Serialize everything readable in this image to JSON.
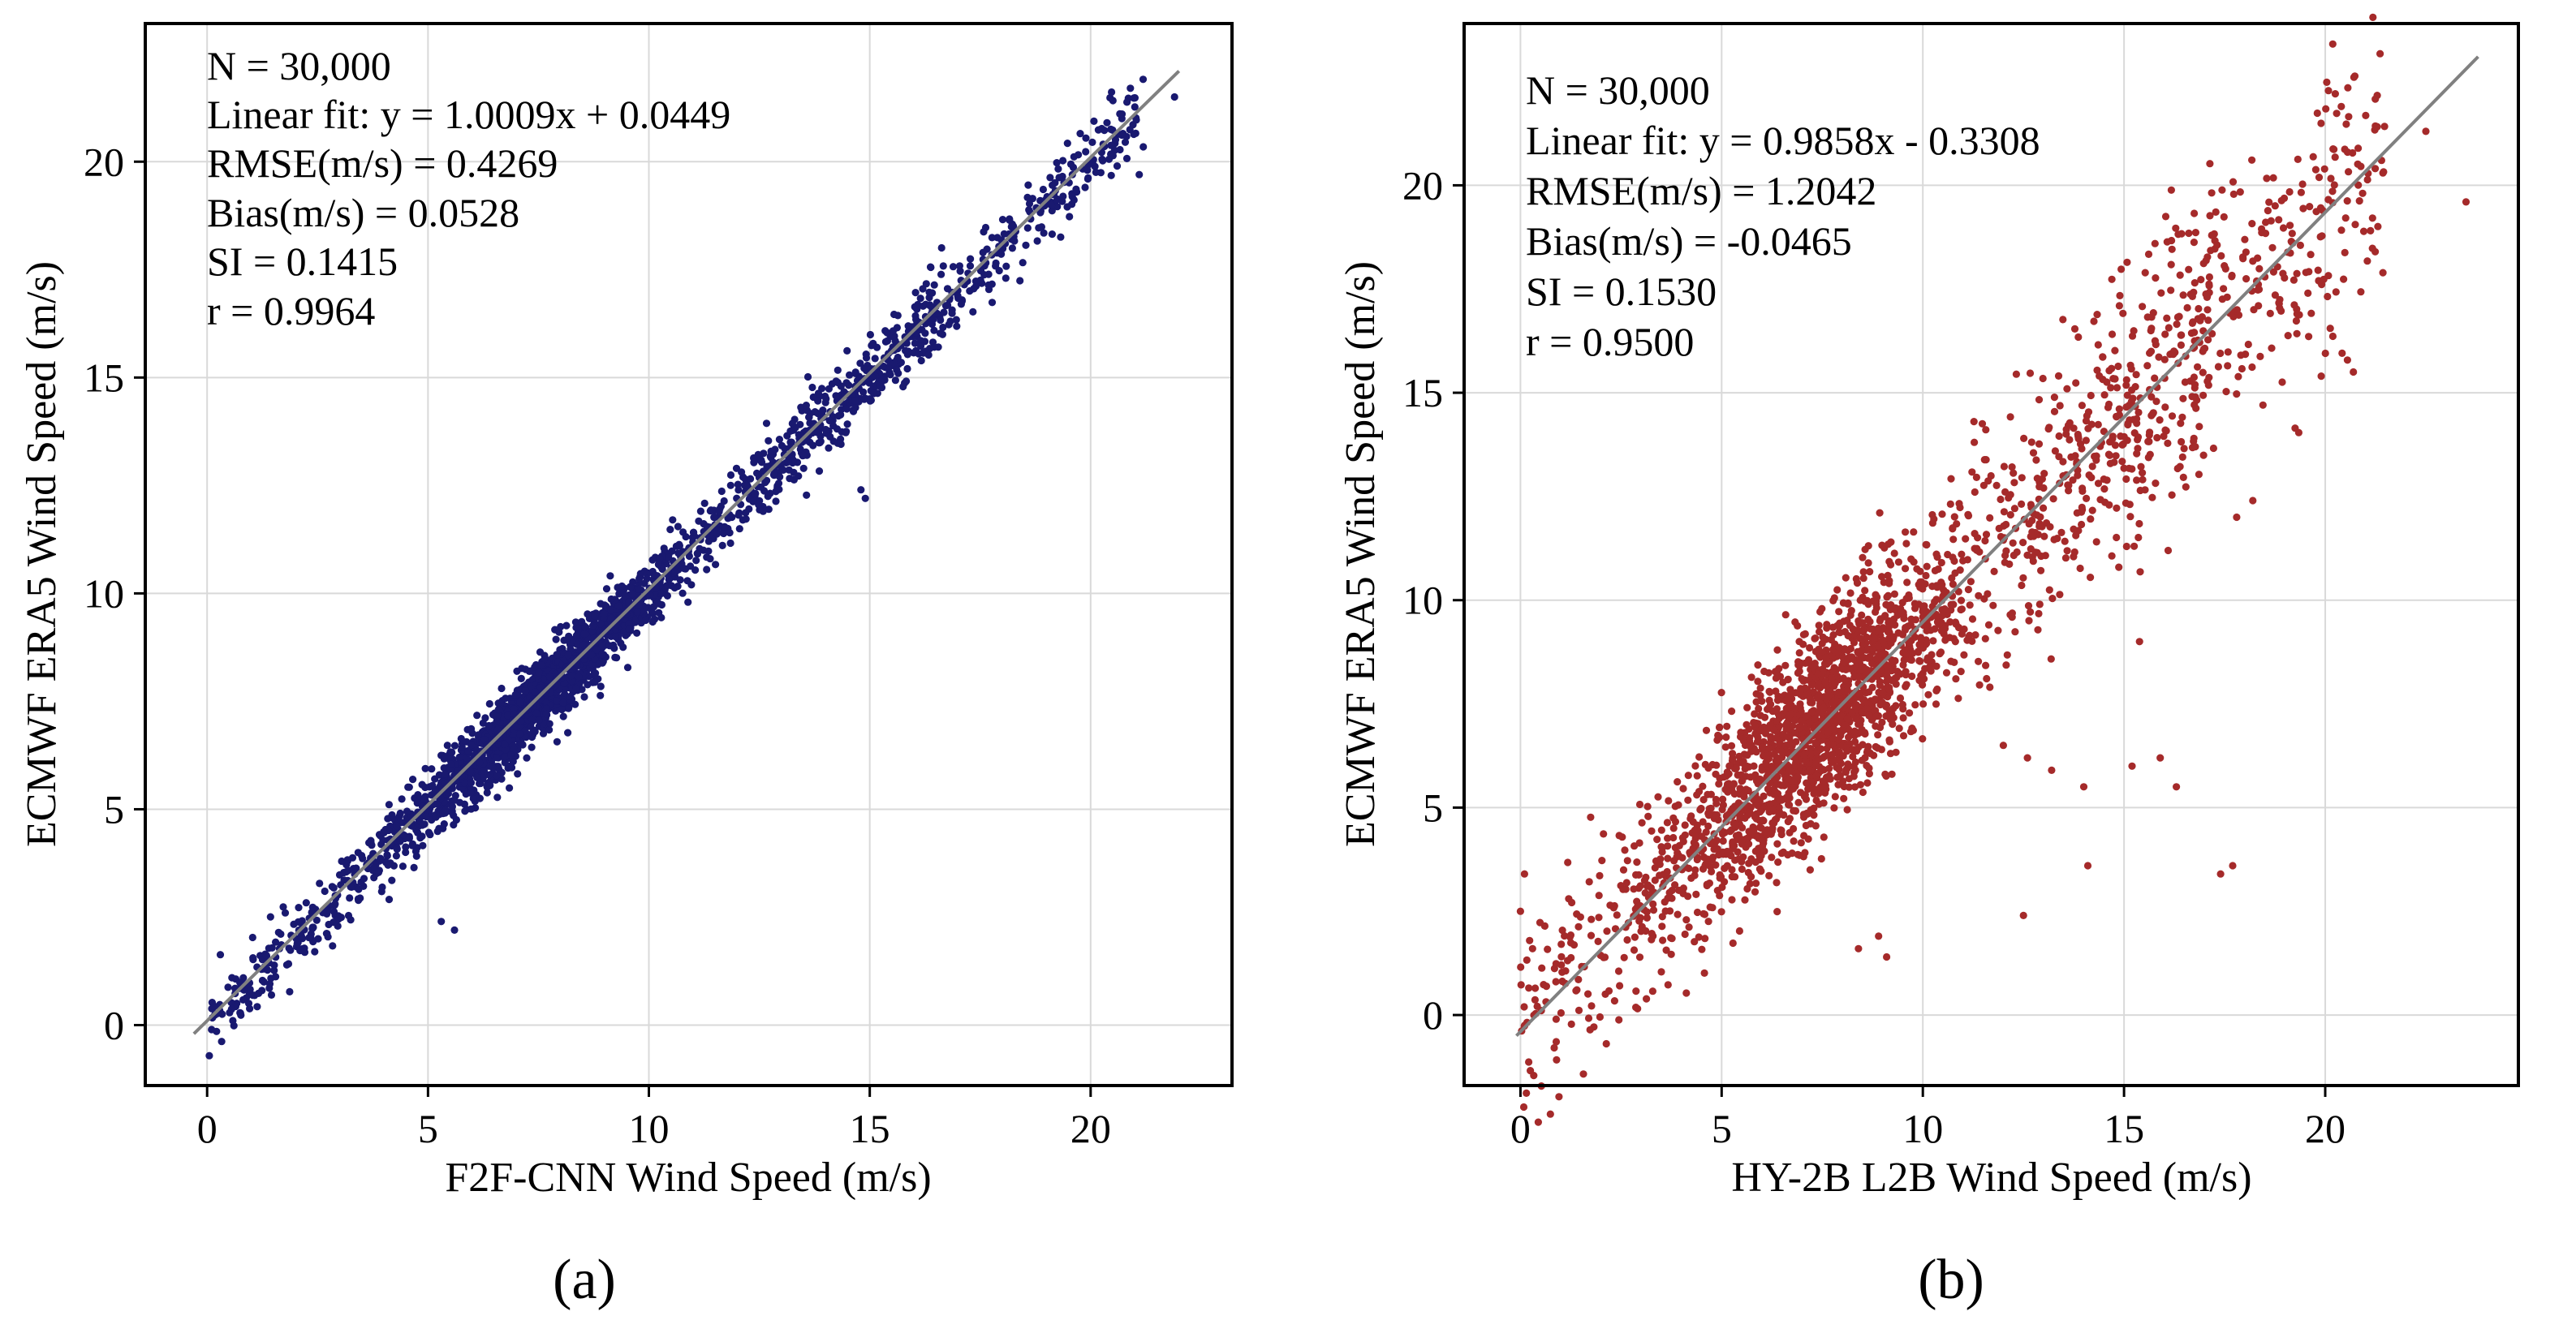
{
  "figure": {
    "panels": [
      {
        "id": "a",
        "panel_label": "(a)",
        "stats": [
          "N = 30,000",
          "Linear fit: y = 1.0009x + 0.0449",
          "RMSE(m/s) = 0.4269",
          "Bias(m/s) = 0.0528",
          "SI = 0.1415",
          "r = 0.9964"
        ]
      },
      {
        "id": "b",
        "panel_label": "(b)",
        "stats": [
          "N = 30,000",
          "Linear fit: y = 0.9858x - 0.3308",
          "RMSE(m/s) = 1.2042",
          "Bias(m/s) = -0.0465",
          "SI = 0.1530",
          "r = 0.9500"
        ]
      }
    ]
  },
  "chart_data": [
    {
      "type": "scatter",
      "title": "",
      "xlabel": "F2F-CNN Wind Speed (m/s)",
      "ylabel": "ECMWF ERA5 Wind Speed (m/s)",
      "xlim": [
        -1.4,
        23.2
      ],
      "ylim": [
        -1.4,
        23.2
      ],
      "xticks": [
        0,
        5,
        10,
        15,
        20
      ],
      "yticks": [
        0,
        5,
        10,
        15,
        20
      ],
      "grid": true,
      "point_color": "#191970",
      "line_color": "#808080",
      "n": 30000,
      "fit": {
        "slope": 1.0009,
        "intercept": 0.0449
      },
      "reference_line": {
        "x": [
          -0.3,
          22.0
        ],
        "y": [
          -0.2,
          22.1
        ]
      },
      "noise_sd": 0.42,
      "sample_range": [
        0.0,
        21.2
      ],
      "outliers": [
        {
          "x": 5.3,
          "y": 2.4
        },
        {
          "x": 5.6,
          "y": 2.2
        },
        {
          "x": 14.8,
          "y": 12.4
        },
        {
          "x": 14.9,
          "y": 12.2
        },
        {
          "x": 20.9,
          "y": 21.7
        },
        {
          "x": 21.1,
          "y": 19.7
        },
        {
          "x": 20.6,
          "y": 19.9
        },
        {
          "x": 21.9,
          "y": 21.5
        }
      ]
    },
    {
      "type": "scatter",
      "title": "",
      "xlabel": "HY-2B L2B Wind Speed (m/s)",
      "ylabel": "ECMWF ERA5 Wind Speed (m/s)",
      "xlim": [
        -1.4,
        24.8
      ],
      "ylim": [
        -1.7,
        23.9
      ],
      "xticks": [
        0,
        5,
        10,
        15,
        20
      ],
      "yticks": [
        0,
        5,
        10,
        15,
        20
      ],
      "grid": true,
      "point_color": "#a52a2a",
      "line_color": "#808080",
      "n": 30000,
      "fit": {
        "slope": 0.9858,
        "intercept": -0.3308
      },
      "reference_line": {
        "x": [
          -0.1,
          23.8
        ],
        "y": [
          -0.5,
          23.1
        ]
      },
      "noise_sd": 1.2,
      "sample_range": [
        0.0,
        21.5
      ],
      "outliers": [
        {
          "x": 12.0,
          "y": 6.5
        },
        {
          "x": 12.6,
          "y": 6.2
        },
        {
          "x": 13.2,
          "y": 5.9
        },
        {
          "x": 14.0,
          "y": 5.5
        },
        {
          "x": 15.2,
          "y": 6.0
        },
        {
          "x": 15.9,
          "y": 6.2
        },
        {
          "x": 16.3,
          "y": 5.5
        },
        {
          "x": 12.5,
          "y": 2.4
        },
        {
          "x": 14.1,
          "y": 3.6
        },
        {
          "x": 17.4,
          "y": 3.4
        },
        {
          "x": 17.7,
          "y": 3.6
        },
        {
          "x": 8.4,
          "y": 1.6
        },
        {
          "x": 9.1,
          "y": 1.4
        },
        {
          "x": 8.9,
          "y": 1.9
        },
        {
          "x": 19.9,
          "y": 15.4
        },
        {
          "x": 20.7,
          "y": 15.5
        },
        {
          "x": 23.5,
          "y": 19.6
        },
        {
          "x": 22.5,
          "y": 21.3
        },
        {
          "x": 21.4,
          "y": 20.6
        },
        {
          "x": 20.4,
          "y": 21.9
        },
        {
          "x": 19.3,
          "y": 16.9
        },
        {
          "x": 18.2,
          "y": 12.4
        },
        {
          "x": 17.8,
          "y": 12.0
        },
        {
          "x": 7.2,
          "y": 3.5
        },
        {
          "x": 0.0,
          "y": 2.5
        },
        {
          "x": 0.1,
          "y": 3.4
        },
        {
          "x": 0.3,
          "y": 1.6
        }
      ]
    }
  ]
}
